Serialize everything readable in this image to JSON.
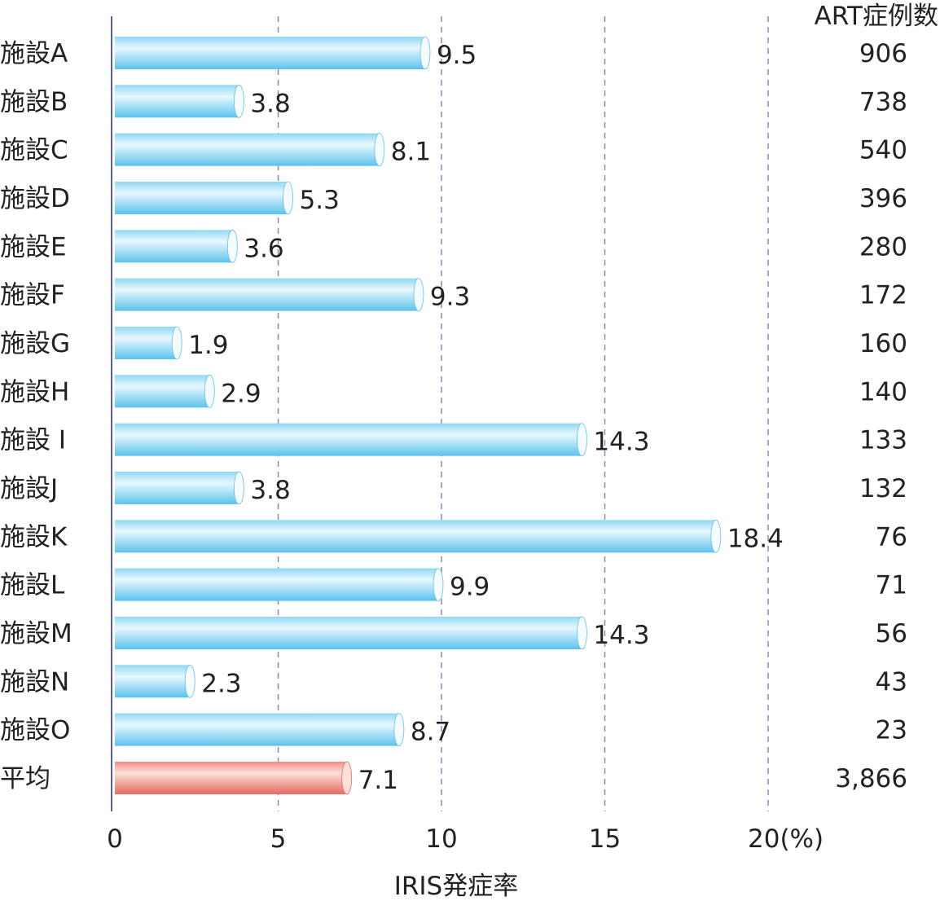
{
  "chart_data": {
    "type": "bar",
    "orientation": "horizontal",
    "categories": [
      "施設A",
      "施設B",
      "施設C",
      "施設D",
      "施設E",
      "施設F",
      "施設G",
      "施設H",
      "施設 I",
      "施設J",
      "施設K",
      "施設L",
      "施設M",
      "施設N",
      "施設O",
      "平均"
    ],
    "values": [
      9.5,
      3.8,
      8.1,
      5.3,
      3.6,
      9.3,
      1.9,
      2.9,
      14.3,
      3.8,
      18.4,
      9.9,
      14.3,
      2.3,
      8.7,
      7.1
    ],
    "value_labels": [
      "9.5",
      "3.8",
      "8.1",
      "5.3",
      "3.6",
      "9.3",
      "1.9",
      "2.9",
      "14.3",
      "3.8",
      "18.4",
      "9.9",
      "14.3",
      "2.3",
      "8.7",
      "7.1"
    ],
    "art_cases_header": "ART症例数",
    "art_cases": [
      "906",
      "738",
      "540",
      "396",
      "280",
      "172",
      "160",
      "140",
      "133",
      "132",
      "76",
      "71",
      "56",
      "43",
      "23",
      "3,866"
    ],
    "xlabel": "IRIS発症率",
    "xlim": [
      0,
      20
    ],
    "xticks": [
      "0",
      "5",
      "10",
      "15",
      "20(%)"
    ],
    "xtick_values": [
      0,
      5,
      10,
      15,
      20
    ],
    "grid": "vertical dashed",
    "highlight_index": 15,
    "colors": {
      "bar": "#8fd8f2",
      "bar_light": "#e8f8fe",
      "bar_dark": "#5cc2ec",
      "highlight_bar": "#f08c84",
      "highlight_light": "#fde0dc",
      "highlight_dark": "#e56a60",
      "highlight_text": "#e0282a",
      "axis": "#5a5f9c",
      "grid": "#8a8ab8"
    }
  }
}
